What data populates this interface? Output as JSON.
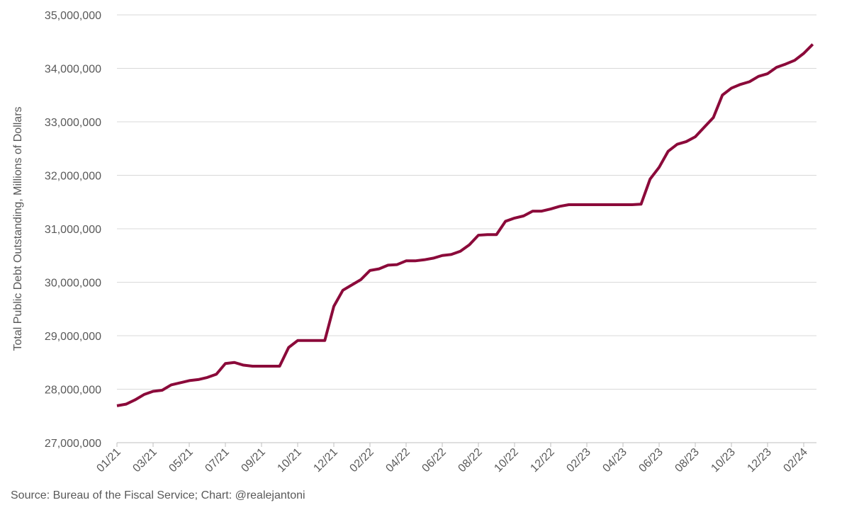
{
  "chart_data": {
    "type": "line",
    "ylabel": "Total Public Debt Outstanding, Millions of Dollars",
    "source": "Source: Bureau of the Fiscal Service; Chart: @realejantoni",
    "color": "#8b0a3a",
    "categories": [
      "01/21",
      null,
      null,
      null,
      "03/21",
      null,
      null,
      null,
      "05/21",
      null,
      null,
      null,
      "07/21",
      null,
      null,
      null,
      "09/21",
      null,
      null,
      null,
      "10/21",
      null,
      null,
      null,
      "12/21",
      null,
      null,
      null,
      "02/22",
      null,
      null,
      null,
      "04/22",
      null,
      null,
      null,
      "06/22",
      null,
      null,
      null,
      "08/22",
      null,
      null,
      null,
      "10/22",
      null,
      null,
      null,
      "12/22",
      null,
      null,
      null,
      "02/23",
      null,
      null,
      null,
      "04/23",
      null,
      null,
      null,
      "06/23",
      null,
      null,
      null,
      "08/23",
      null,
      null,
      null,
      "10/23",
      null,
      null,
      null,
      "12/23",
      null,
      null,
      null,
      "02/24",
      null
    ],
    "values": [
      27690000,
      27720000,
      27800000,
      27900000,
      27960000,
      27980000,
      28080000,
      28120000,
      28160000,
      28180000,
      28220000,
      28280000,
      28480000,
      28500000,
      28450000,
      28430000,
      28430000,
      28430000,
      28430000,
      28780000,
      28910000,
      28910000,
      28910000,
      28910000,
      29550000,
      29850000,
      29950000,
      30050000,
      30220000,
      30250000,
      30320000,
      30330000,
      30400000,
      30400000,
      30420000,
      30450000,
      30500000,
      30520000,
      30580000,
      30700000,
      30880000,
      30890000,
      30890000,
      31140000,
      31200000,
      31240000,
      31330000,
      31330000,
      31370000,
      31420000,
      31450000,
      31450000,
      31450000,
      31450000,
      31450000,
      31450000,
      31450000,
      31450000,
      31460000,
      31930000,
      32150000,
      32450000,
      32580000,
      32630000,
      32720000,
      32900000,
      33080000,
      33500000,
      33630000,
      33700000,
      33750000,
      33850000,
      33900000,
      34020000,
      34080000,
      34150000,
      34280000,
      34450000
    ],
    "ylim": [
      27000000,
      35000000
    ],
    "yticks": [
      {
        "value": 27000000,
        "label": "27,000,000"
      },
      {
        "value": 28000000,
        "label": "28,000,000"
      },
      {
        "value": 29000000,
        "label": "29,000,000"
      },
      {
        "value": 30000000,
        "label": "30,000,000"
      },
      {
        "value": 31000000,
        "label": "31,000,000"
      },
      {
        "value": 32000000,
        "label": "32,000,000"
      },
      {
        "value": 33000000,
        "label": "33,000,000"
      },
      {
        "value": 34000000,
        "label": "34,000,000"
      },
      {
        "value": 35000000,
        "label": "35,000,000"
      }
    ],
    "grid": true
  }
}
